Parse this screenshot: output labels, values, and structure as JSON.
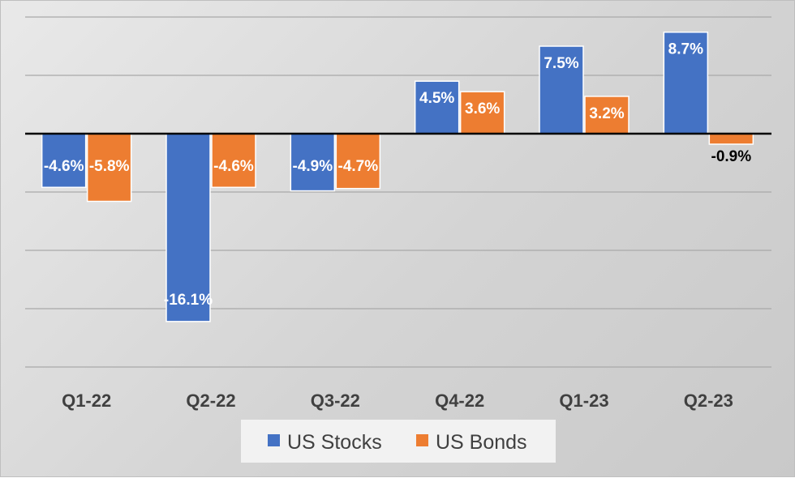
{
  "chart_data": {
    "type": "bar",
    "title": "",
    "xlabel": "",
    "ylabel": "",
    "ylim": [
      -20,
      10
    ],
    "grid": true,
    "categories": [
      "Q1-22",
      "Q2-22",
      "Q3-22",
      "Q4-22",
      "Q1-23",
      "Q2-23"
    ],
    "series": [
      {
        "name": "US Stocks",
        "color": "#4472C4",
        "values": [
          -4.6,
          -16.1,
          -4.9,
          4.5,
          7.5,
          8.7
        ],
        "labels": [
          "-4.6%",
          "-16.1%",
          "-4.9%",
          "4.5%",
          "7.5%",
          "8.7%"
        ]
      },
      {
        "name": "US Bonds",
        "color": "#ED7D31",
        "values": [
          -5.8,
          -4.6,
          -4.7,
          3.6,
          3.2,
          -0.9
        ],
        "labels": [
          "-5.8%",
          "-4.6%",
          "-4.7%",
          "3.6%",
          "3.2%",
          "-0.9%"
        ]
      }
    ],
    "legend_position": "bottom"
  }
}
